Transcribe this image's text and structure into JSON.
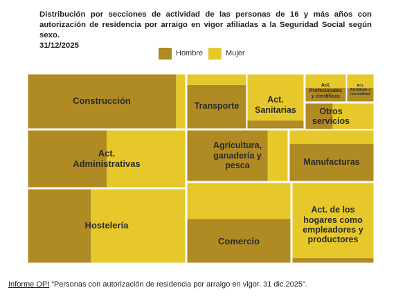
{
  "chart_data": {
    "type": "treemap",
    "title_line1": "Distribución por secciones de actividad de las personas de 16 y más años con autorización de residencia por arraigo en vigor afiliadas a la Seguridad Social según sexo.",
    "title_line2": "31/12/2025",
    "legend": [
      {
        "name": "Hombre",
        "color": "#b08a22"
      },
      {
        "name": "Mujer",
        "color": "#e6c82a"
      }
    ],
    "categories": [
      {
        "name": "Construcción",
        "label": "Construcción",
        "hombre": 0.94,
        "mujer": 0.06
      },
      {
        "name": "Transporte",
        "label": "Transporte",
        "hombre": 0.8,
        "mujer": 0.2
      },
      {
        "name": "Act. Sanitarias",
        "label": "Act.\nSanitarias",
        "hombre": 0.15,
        "mujer": 0.85
      },
      {
        "name": "Act. Profesionales y científicas",
        "label": "Act.\nProfesionales\ny científicas",
        "hombre": 0.5,
        "mujer": 0.5
      },
      {
        "name": "Act. Artísticas y recreativas",
        "label": "Act.\nArtísticas y\nrecreativas",
        "hombre": 0.5,
        "mujer": 0.5
      },
      {
        "name": "Otros servicios",
        "label": "Otros\nservicios",
        "hombre": 0.4,
        "mujer": 0.6
      },
      {
        "name": "Act. Administrativas",
        "label": "Act.\nAdministrativas",
        "hombre": 0.5,
        "mujer": 0.5
      },
      {
        "name": "Agricultura, ganadería y pesca",
        "label": "Agricultura,\nganadería y\npesca",
        "hombre": 0.8,
        "mujer": 0.2
      },
      {
        "name": "Manufacturas",
        "label": "Manufacturas",
        "hombre": 0.73,
        "mujer": 0.27
      },
      {
        "name": "Hostelería",
        "label": "Hostelería",
        "hombre": 0.4,
        "mujer": 0.6
      },
      {
        "name": "Comercio",
        "label": "Comercio",
        "hombre": 0.55,
        "mujer": 0.45
      },
      {
        "name": "Act. de los hogares como empleadores y productores",
        "label": "Act. de los\nhogares como\nempleadores y\nproductores",
        "hombre": 0.06,
        "mujer": 0.94
      }
    ]
  },
  "footer": {
    "link_text": "Informe OPI",
    "text": " “Personas con autorización de residencia por arraigo en vigor. 31 dic.2025”."
  }
}
